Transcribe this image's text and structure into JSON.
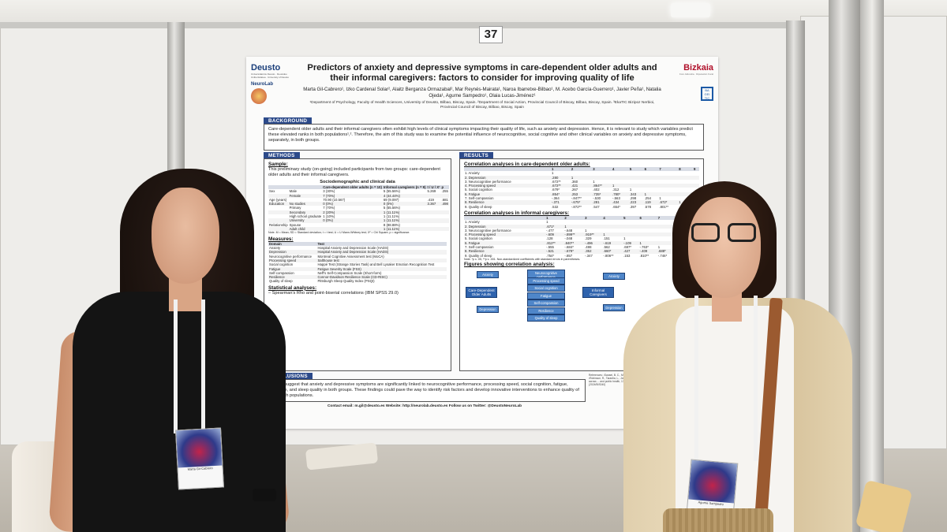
{
  "panel_number": "37",
  "poster": {
    "left_logo": {
      "brand": "Deusto",
      "sub": "Universidad de Deusto · Deustuko Unibertsitatea · University of Deusto",
      "lab": "NeuroLab"
    },
    "right_logo": {
      "brand": "Bizkaia",
      "sub": "Foru Aldundia · Diputación Foral",
      "seal": "BA GEI TIC"
    },
    "title": "Predictors of anxiety and depressive symptoms in care-dependent older adults and their informal caregivers: factors to consider for improving quality of life",
    "authors": "Marta Gil-Cabrero¹, Izko Cardenal Solar², Alaitz Berganza Ormazabal², Mar Reynés-Mairata¹, Naroa Ibarretxe-Bilbao¹, M. Acebo García-Guerrero¹, Javier Peña¹, Natalia Ojeda¹, Agurne Sampedro¹, Olaia Lucas-Jiménez¹",
    "affiliations": "¹Department of Psychology, Faculty of Health Sciences, University of Deusto, Bilbao, Biscay, Spain. ²Department of Social Action, Provincial Council of Biscay, Bilbao, Biscay, Spain. ³EkaTIC Bizipoz Nerbioi, Provincial Council of Biscay, Bilbao, Biscay, Spain",
    "background": {
      "heading": "BACKGROUND",
      "text": "Care-dependent older adults and their informal caregivers often exhibit high levels of clinical symptoms impacting their quality of life, such as anxiety and depression. Hence, it is relevant to study which variables predict these elevated ranks in both populations¹,². Therefore, the aim of this study was to examine the potential influence of neurocognitive, social cognitive and other clinical variables on anxiety and depressive symptoms, separately, in both groups."
    },
    "methods": {
      "heading": "METHODS",
      "sample_head": "Sample:",
      "sample_text": "This preliminary study (on-going) included participants from two groups: care-dependent older adults and their informal caregivers.",
      "table_caption": "Sociodemographic and clinical data",
      "table_cols": [
        "",
        "",
        "Care-dependent older adults (n = 10)",
        "Informal caregivers (n = 9)",
        "t / U / X²",
        "p"
      ],
      "table_rows": [
        [
          "Sex",
          "Male",
          "3 (30%)",
          "5 (55.56%)",
          "5.269",
          ".255"
        ],
        [
          "",
          "Female",
          "7 (70%)",
          "4 (44.44%)",
          "",
          ""
        ],
        [
          "Age (years)",
          "",
          "70.90 (10.567)",
          "69 (9.097)",
          ".419",
          ".681"
        ],
        [
          "Education",
          "No studies",
          "0 (0%)",
          "0 (0%)",
          "3.367",
          ".498"
        ],
        [
          "",
          "Primary",
          "7 (70%)",
          "5 (55.56%)",
          "",
          ""
        ],
        [
          "",
          "Secondary",
          "2 (20%)",
          "1 (11.11%)",
          "",
          ""
        ],
        [
          "",
          "High school graduate",
          "1 (10%)",
          "1 (11.11%)",
          "",
          ""
        ],
        [
          "",
          "University",
          "0 (0%)",
          "1 (11.11%)",
          "",
          ""
        ],
        [
          "Relationship",
          "Spouse",
          "",
          "8 (88.88%)",
          "",
          ""
        ],
        [
          "",
          "Adult child",
          "",
          "1 (11.11%)",
          "",
          ""
        ]
      ],
      "table_note": "Note. M = Mean; SD = Standard deviation; t = t test; U = U Mann-Whitney test; X² = Chi Square; p = significance.",
      "measures_head": "Measures:",
      "measures_cols": [
        "Domain",
        "Test"
      ],
      "measures_rows": [
        [
          "Anxiety",
          "Hospital Anxiety and Depression Scale (HADS)"
        ],
        [
          "Depression",
          "Hospital Anxiety and Depression Scale (HADS)"
        ],
        [
          "Neurocognitive performance",
          "Montreal Cognitive Assessment test (MoCA)"
        ],
        [
          "Processing speed",
          "Salthouse test"
        ],
        [
          "Social cognition",
          "Happé Test (Strange Stories Task) and Bell Lysaker Emotion Recognition Test"
        ],
        [
          "Fatigue",
          "Fatigue Severity Scale (FSS)"
        ],
        [
          "Self-compassion",
          "Neff's Self-Compassion Scale (Short-form)"
        ],
        [
          "Resilience",
          "Connor-Davidson Resilience Scale (CD-RISC)"
        ],
        [
          "Quality of sleep",
          "Pittsburgh Sleep Quality Index (PSQI)"
        ]
      ],
      "stats_head": "Statistical analyses:",
      "stats_text": "– Spearman's Rho and point-biserial correlations (IBM SPSS 29.0)"
    },
    "results": {
      "heading": "RESULTS",
      "corr1_head": "Correlation analyses in care-dependent older adults:",
      "corr_cols": [
        "",
        "1",
        "2",
        "3",
        "4",
        "5",
        "6",
        "7",
        "8",
        "9"
      ],
      "corr1_rows": [
        [
          "1. Anxiety",
          "1",
          "",
          "",
          "",
          "",
          "",
          "",
          "",
          ""
        ],
        [
          "2. Depression",
          ".280",
          "1",
          "",
          "",
          "",
          "",
          "",
          "",
          ""
        ],
        [
          "3. Neurocognitive performance",
          ".672**",
          ".360",
          "1",
          "",
          "",
          "",
          "",
          "",
          ""
        ],
        [
          "4. Processing speed",
          ".672**",
          ".421",
          ".864**",
          "1",
          "",
          "",
          "",
          "",
          ""
        ],
        [
          "5. Social cognition",
          ".679*",
          ".267",
          ".402",
          ".312",
          "1",
          "",
          "",
          "",
          ""
        ],
        [
          "6. Fatigue",
          ".854*",
          ".253",
          ".735*",
          ".780*",
          ".343",
          "1",
          "",
          "",
          ""
        ],
        [
          "7. Self-compassion",
          "-.364",
          "-.847**",
          "-.530",
          "-.563",
          ".298",
          ".254",
          "1",
          "",
          ""
        ],
        [
          "8. Resilience",
          "-.371",
          "-.675*",
          ".281",
          ".434",
          ".223",
          ".119",
          ".672*",
          "1",
          ""
        ],
        [
          "9. Quality of sleep",
          ".532",
          "-.872**",
          ".547",
          ".654*",
          ".397",
          ".578",
          ".801**",
          ".457",
          "1"
        ]
      ],
      "corr2_head": "Correlation analyses in informal caregivers:",
      "corr2_rows": [
        [
          "1. Anxiety",
          "1",
          "",
          "",
          "",
          "",
          "",
          "",
          "",
          ""
        ],
        [
          "2. Depression",
          ".671*",
          "1",
          "",
          "",
          "",
          "",
          "",
          "",
          ""
        ],
        [
          "3. Neurocognitive performance",
          "-.477",
          "-.648",
          "1",
          "",
          "",
          "",
          "",
          "",
          ""
        ],
        [
          "4. Processing speed",
          "-.609",
          "-.899**",
          ".919**",
          "1",
          "",
          "",
          "",
          "",
          ""
        ],
        [
          "5. Social cognition",
          ".128",
          "-.048",
          ".329",
          ".151",
          "1",
          "",
          "",
          "",
          ""
        ],
        [
          "6. Fatigue",
          ".812**",
          ".840**",
          "-.496",
          "-.619",
          "-.109",
          "1",
          "",
          "",
          ""
        ],
        [
          "7. Self-compassion",
          "-.555",
          "-.684*",
          ".498",
          ".562",
          ".697*",
          "-.763*",
          "1",
          "",
          ""
        ],
        [
          "8. Resilience",
          "-.521",
          "-.679*",
          ".352",
          ".660*",
          ".427",
          "-.409",
          ".688*",
          "1",
          ""
        ],
        [
          "9. Quality of sleep",
          ".754*",
          "-.857",
          "-.347",
          "-.806**",
          ".153",
          ".810**",
          "-.746*",
          "-.733*",
          "1"
        ]
      ],
      "corr_note": "Note. *p ≤ .05, **p ≤ .001. Non-standardized coefficients with standard errors in parentheses.",
      "fig_head": "Figures showing correlation analysis:",
      "fig_left_center": "Care-Dependent Older Adults",
      "fig_left_top": "Anxiety",
      "fig_left_bottom": "Depression",
      "fig_left_vars": [
        "Neurocognitive performance",
        "Processing speed",
        "Social cognition",
        "Fatigue",
        "Self-compassion",
        "Resilience",
        "Quality of sleep"
      ],
      "fig_right_center": "Informal Caregivers",
      "fig_right_top": "Anxiety",
      "fig_right_bottom": "Depression"
    },
    "conclusions": {
      "heading": "CONCLUSIONS",
      "text": "Results suggest that anxiety and depressive symptoms are significantly linked to neurocognitive performance, processing speed, social cognition, fatigue, resilience, and sleep quality in both groups. These findings could pave the way to identify risk factors and develop innovative interventions to enhance quality of life in both populations."
    },
    "references": "References: ¹Sanaei, B. C., Mikkelsen, A. L. Bedaf, S., ... caregivers during the COVID-19 ... ²Robinson, R., Tarantia, L., Joseph, G. A., & Fuksa, W. A. (2022). Anxiety ... Trajectories of influence across ... and public health, 17(7), 4039. Funding sources: This work was supported by ... Biscay (2024/BIS040)",
    "contact": "Contact email: m.gil@deusto.es   Website: http://neurolab.deusto.es   Follow us on Twitter: @DeustoNeuroLab"
  },
  "badges": {
    "left_name": "Marta Gil-Cabrero",
    "right_name": "Agurne Sampedro"
  }
}
